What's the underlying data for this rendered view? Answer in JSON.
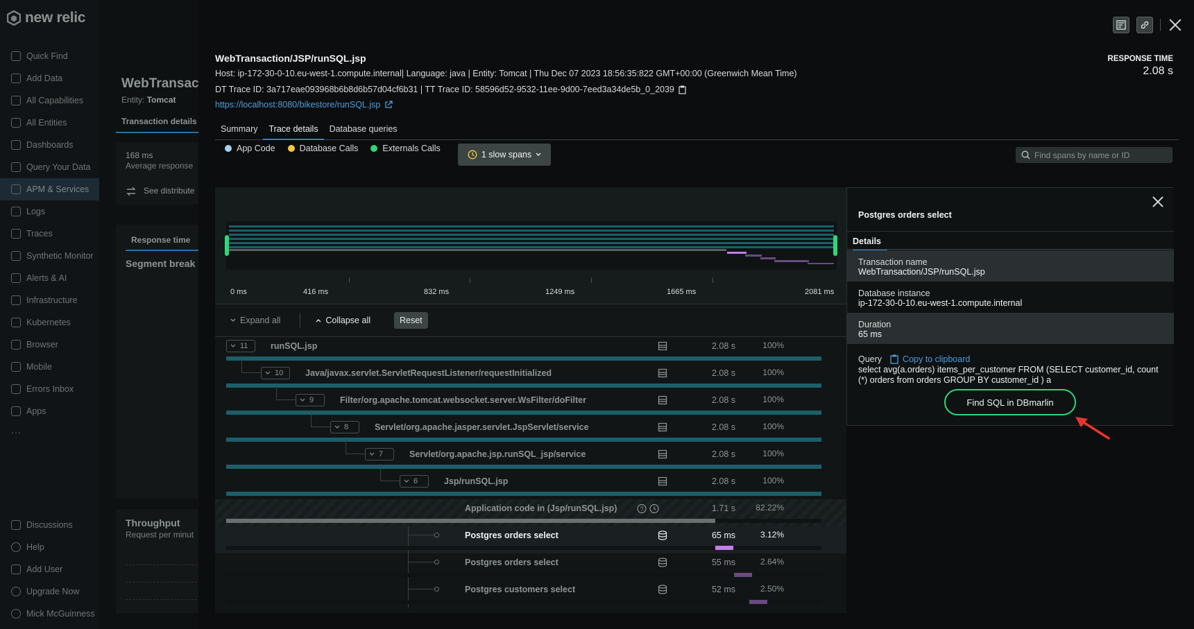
{
  "brand": {
    "logo_text": "new relic"
  },
  "sidebar": {
    "items": [
      {
        "label": "Quick Find",
        "icon": "search-icon"
      },
      {
        "label": "Add Data",
        "icon": "plus-icon"
      },
      {
        "label": "All Capabilities",
        "icon": "grid-icon"
      },
      {
        "label": "All Entities",
        "icon": "entities-icon"
      },
      {
        "label": "Dashboards",
        "icon": "dashboard-icon"
      },
      {
        "label": "Query Your Data",
        "icon": "query-icon"
      },
      {
        "label": "APM & Services",
        "icon": "globe-icon"
      },
      {
        "label": "Logs",
        "icon": "logs-icon"
      },
      {
        "label": "Traces",
        "icon": "traces-icon"
      },
      {
        "label": "Synthetic Monitor",
        "icon": "synthetic-icon"
      },
      {
        "label": "Alerts & AI",
        "icon": "alert-icon"
      },
      {
        "label": "Infrastructure",
        "icon": "infrastructure-icon"
      },
      {
        "label": "Kubernetes",
        "icon": "kubernetes-icon"
      },
      {
        "label": "Browser",
        "icon": "browser-icon"
      },
      {
        "label": "Mobile",
        "icon": "mobile-icon"
      },
      {
        "label": "Errors Inbox",
        "icon": "inbox-icon"
      },
      {
        "label": "Apps",
        "icon": "apps-icon"
      }
    ],
    "more": "···",
    "bottom": [
      {
        "label": "Discussions",
        "icon": "chat-icon"
      },
      {
        "label": "Help",
        "icon": "help-icon"
      },
      {
        "label": "Add User",
        "icon": "user-plus-icon"
      },
      {
        "label": "Upgrade Now",
        "icon": "upgrade-icon"
      },
      {
        "label": "Mick McGuinness",
        "icon": "avatar-icon"
      }
    ]
  },
  "background_page": {
    "title": "WebTransact",
    "entity_label": "Entity:",
    "entity_value": "Tomcat",
    "tab": "Transaction details",
    "stat_value": "168 ms",
    "stat_label": "Average response",
    "see_distribution": "See distribute",
    "response_time_tab": "Response time",
    "segment_heading": "Segment break",
    "throughput_heading": "Throughput",
    "throughput_sub": "Request per minut"
  },
  "transaction": {
    "title": "WebTransaction/JSP/runSQL.jsp",
    "meta_line": "Host: ip-172-30-0-10.eu-west-1.compute.internal| Language: java | Entity: Tomcat | Thu Dec 07 2023 18:56:35:822 GMT+00:00 (Greenwich Mean Time)",
    "trace_ids": "DT Trace ID: 3a717eae093968b6b8d6b57d04cf6b31 | TT Trace ID: 58596d52-9532-11ee-9d00-7eed3a34de5b_0_2039",
    "url": "https://localhost:8080/bikestore/runSQL.jsp",
    "response_time_label": "RESPONSE TIME",
    "response_time_value": "2.08 s"
  },
  "tabs": [
    "Summary",
    "Trace details",
    "Database queries"
  ],
  "legend": [
    {
      "label": "App Code",
      "color": "#a8d0f0"
    },
    {
      "label": "Database Calls",
      "color": "#f5c842"
    },
    {
      "label": "Externals Calls",
      "color": "#2dd87a"
    }
  ],
  "slow_spans_button": "1 slow spans",
  "search": {
    "placeholder": "Find spans by name or ID"
  },
  "timeline": {
    "ticks": [
      "0 ms",
      "416 ms",
      "832 ms",
      "1249 ms",
      "1665 ms",
      "2081 ms"
    ]
  },
  "controls": {
    "expand_all": "Expand all",
    "collapse_all": "Collapse all",
    "reset": "Reset"
  },
  "spans": [
    {
      "count": "11",
      "name": "runSQL.jsp",
      "duration": "2.08 s",
      "percent": "100%",
      "fraction": 1.0,
      "start": 0.0,
      "color": "#1b5f6a"
    },
    {
      "count": "10",
      "name": "Java/javax.servlet.ServletRequestListener/requestInitialized",
      "duration": "2.08 s",
      "percent": "100%",
      "fraction": 1.0,
      "start": 0.0,
      "color": "#1b5f6a"
    },
    {
      "count": "9",
      "name": "Filter/org.apache.tomcat.websocket.server.WsFilter/doFilter",
      "duration": "2.08 s",
      "percent": "100%",
      "fraction": 1.0,
      "start": 0.0,
      "color": "#1b5f6a"
    },
    {
      "count": "8",
      "name": "Servlet/org.apache.jasper.servlet.JspServlet/service",
      "duration": "2.08 s",
      "percent": "100%",
      "fraction": 1.0,
      "start": 0.0,
      "color": "#1b5f6a"
    },
    {
      "count": "7",
      "name": "Servlet/org.apache.jsp.runSQL_jsp/service",
      "duration": "2.08 s",
      "percent": "100%",
      "fraction": 1.0,
      "start": 0.0,
      "color": "#1b5f6a"
    },
    {
      "count": "6",
      "name": "Jsp/runSQL.jsp",
      "duration": "2.08 s",
      "percent": "100%",
      "fraction": 1.0,
      "start": 0.0,
      "color": "#1b5f6a"
    },
    {
      "count": "",
      "name": "Application code in (Jsp/runSQL.jsp)",
      "duration": "1.71 s",
      "percent": "82.22%",
      "fraction": 0.8222,
      "start": 0.0,
      "color": "#6a7070"
    },
    {
      "count": "",
      "name": "Postgres orders select",
      "duration": "65 ms",
      "percent": "3.12%",
      "fraction": 0.0312,
      "start": 0.822,
      "color": "#c77dea"
    },
    {
      "count": "",
      "name": "Postgres orders select",
      "duration": "55 ms",
      "percent": "2.64%",
      "fraction": 0.0264,
      "start": 0.853,
      "color": "#6a4a80"
    },
    {
      "count": "",
      "name": "Postgres customers select",
      "duration": "52 ms",
      "percent": "2.50%",
      "fraction": 0.025,
      "start": 0.879,
      "color": "#6a4a80"
    }
  ],
  "details_panel": {
    "title": "Postgres orders select",
    "tab": "Details",
    "fields": [
      {
        "label": "Transaction name",
        "value": "WebTransaction/JSP/runSQL.jsp"
      },
      {
        "label": "Database instance",
        "value": "ip-172-30-0-10.eu-west-1.compute.internal"
      },
      {
        "label": "Duration",
        "value": "65 ms"
      }
    ],
    "query_label": "Query",
    "copy_label": "Copy to clipboard",
    "query_text": "select avg(a.orders) items_per_customer FROM (SELECT customer_id, count (*) orders from orders GROUP BY customer_id ) a",
    "find_button": "Find SQL in DBmarlin"
  }
}
